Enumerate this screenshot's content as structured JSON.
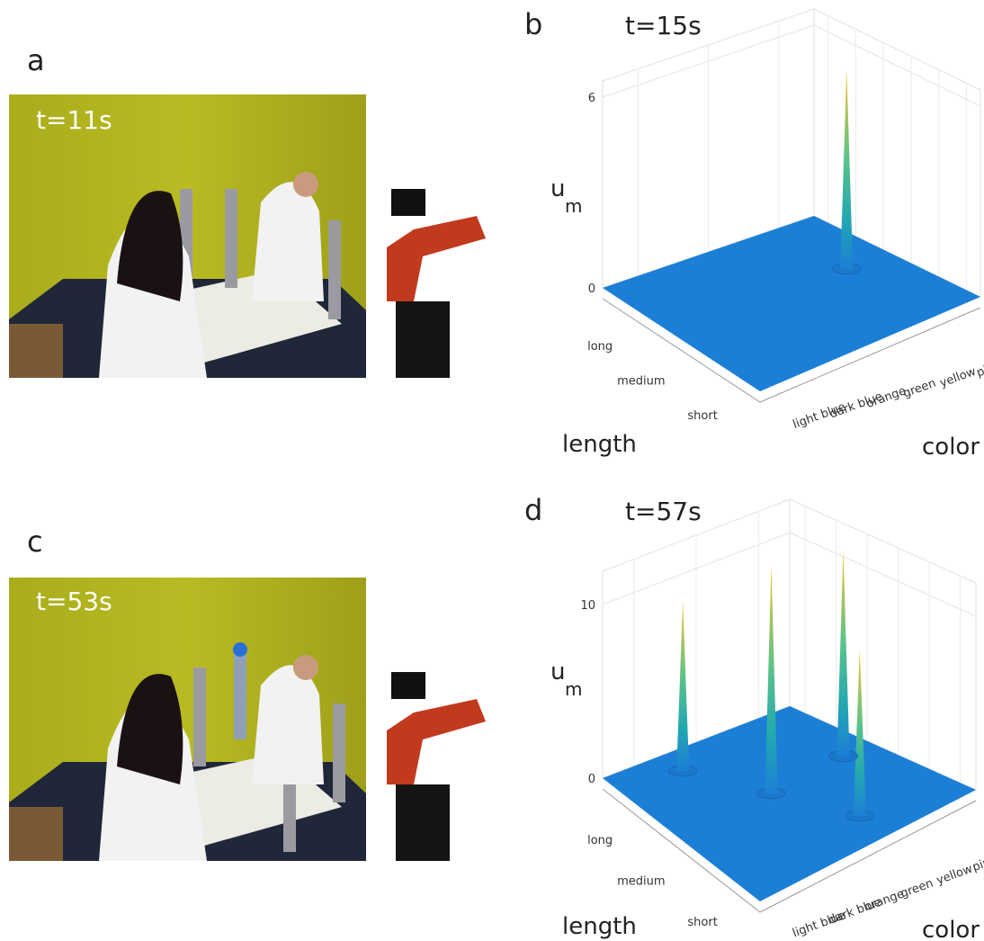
{
  "panels": [
    {
      "label": "a",
      "time": "t=11s"
    },
    {
      "label": "b",
      "time": "t=15s",
      "z_label": "u",
      "z_sub": "m",
      "zticks": [
        0,
        6
      ],
      "length_label": "length",
      "color_label": "color",
      "lengths": [
        "long",
        "medium",
        "short"
      ],
      "colors": [
        "light blue",
        "dark blue",
        "orange",
        "green",
        "yellow",
        "pink"
      ],
      "peaks": [
        {
          "length": "medium",
          "color": "yellow",
          "height": 6.3
        }
      ]
    },
    {
      "label": "c",
      "time": "t=53s"
    },
    {
      "label": "d",
      "time": "t=57s",
      "z_label": "u",
      "z_sub": "m",
      "zticks": [
        0,
        10
      ],
      "length_label": "length",
      "color_label": "color",
      "lengths": [
        "long",
        "medium",
        "short"
      ],
      "colors": [
        "light blue",
        "dark blue",
        "orange",
        "green",
        "yellow",
        "pink"
      ],
      "peaks": [
        {
          "length": "long",
          "color": "dark blue",
          "height": 9.8
        },
        {
          "length": "medium",
          "color": "orange",
          "height": 13.2
        },
        {
          "length": "short",
          "color": "green",
          "height": 9.6
        },
        {
          "length": "medium",
          "color": "yellow",
          "height": 11.9
        }
      ]
    }
  ]
}
